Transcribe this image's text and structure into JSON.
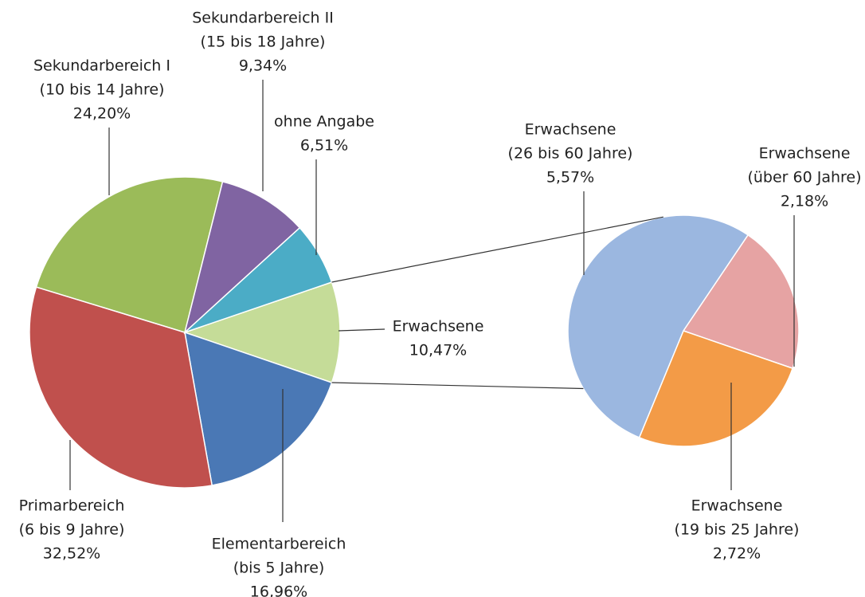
{
  "chart_data": {
    "type": "pie",
    "categories": [
      [
        "Erwachsene"
      ],
      [
        "Elementarbereich",
        "(bis 5 Jahre)"
      ],
      [
        "Primarbereich",
        "(6 bis 9 Jahre)"
      ],
      [
        "Sekundarbereich I",
        "(10 bis 14 Jahre)"
      ],
      [
        "Sekundarbereich II",
        "(15 bis 18 Jahre)"
      ],
      [
        "ohne Angabe"
      ]
    ],
    "values": [
      10.47,
      16.96,
      32.52,
      24.2,
      9.34,
      6.51
    ],
    "value_labels": [
      "10,47%",
      "16,96%",
      "32,52%",
      "24,20%",
      "9,34%",
      "6,51%"
    ],
    "colors": [
      "#c5dc98",
      "#4a78b5",
      "#c0504d",
      "#9bbb59",
      "#8064a2",
      "#4bacc6"
    ],
    "secondary": {
      "categories": [
        [
          "Erwachsene",
          "(über 60 Jahre)"
        ],
        [
          "Erwachsene",
          "(19 bis 25 Jahre)"
        ],
        [
          "Erwachsene",
          "(26 bis 60 Jahre)"
        ]
      ],
      "values": [
        2.18,
        2.72,
        5.57
      ],
      "value_labels": [
        "2,18%",
        "2,72%",
        "5,57%"
      ],
      "colors": [
        "#e6a3a3",
        "#f39b47",
        "#9bb7e0"
      ]
    }
  }
}
